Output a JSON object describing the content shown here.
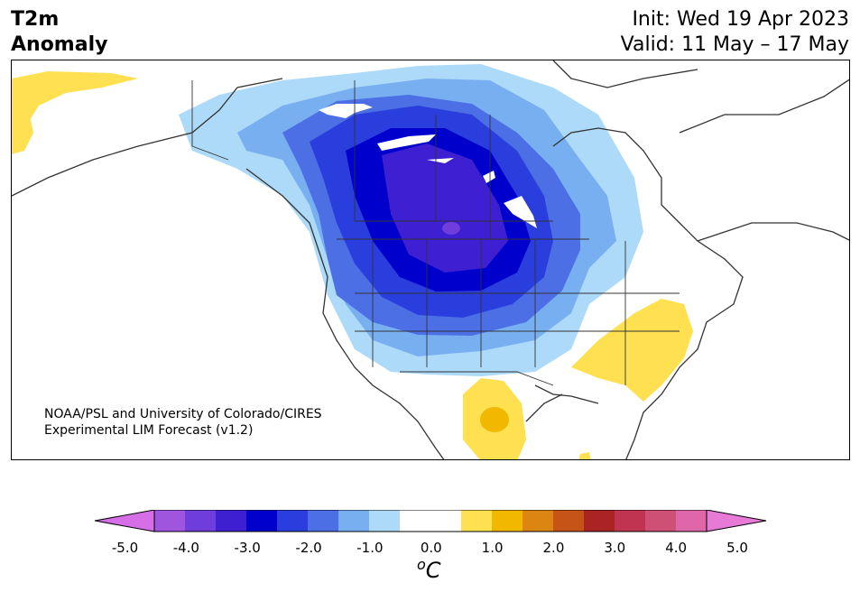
{
  "title": {
    "line1": "T2m",
    "line2": "Anomaly"
  },
  "init": {
    "line1": "Init: Wed 19 Apr 2023",
    "line2": "Valid: 11 May – 17 May"
  },
  "credit": {
    "line1": "NOAA/PSL and University of Colorado/CIRES",
    "line2": "Experimental LIM Forecast (v1.2)"
  },
  "colorbar": {
    "colors": [
      "#d66ee8",
      "#9f55de",
      "#6f3ddc",
      "#3e1fd1",
      "#0000cd",
      "#2a3ede",
      "#4d6fe6",
      "#78aff0",
      "#acdaf8",
      "#ffffff",
      "#ffffff",
      "#fee050",
      "#f2b800",
      "#dd8513",
      "#c65417",
      "#ab2424",
      "#c03351",
      "#cf5075",
      "#df66a8",
      "#e77ad6"
    ],
    "ticks": [
      "-5.0",
      "-4.0",
      "-3.0",
      "-2.0",
      "-1.0",
      "0.0",
      "1.0",
      "2.0",
      "3.0",
      "4.0",
      "5.0"
    ],
    "unit_label": "oC"
  }
}
